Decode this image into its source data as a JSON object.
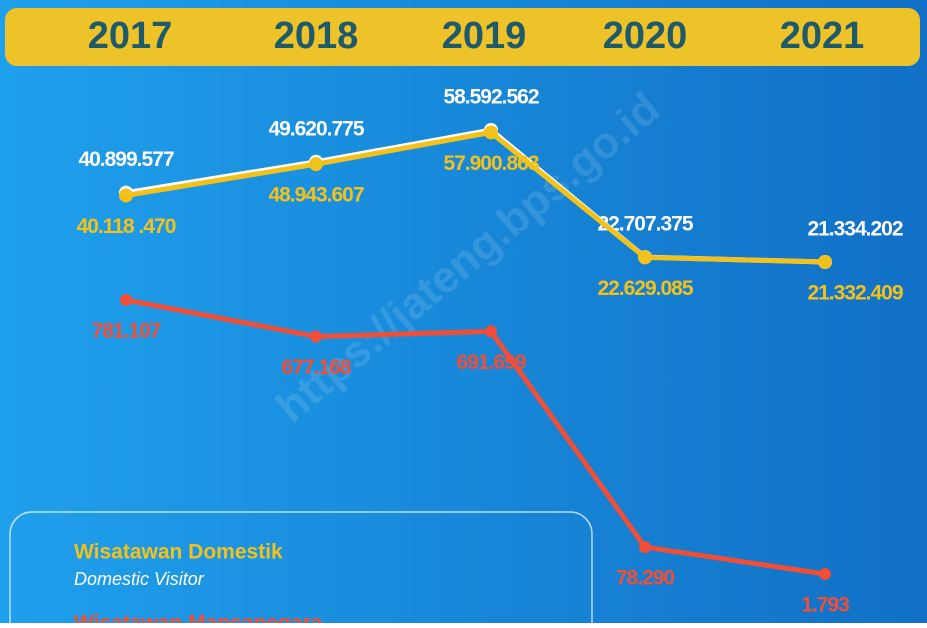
{
  "chart_data": {
    "type": "line",
    "categories": [
      "2017",
      "2018",
      "2019",
      "2020",
      "2021"
    ],
    "series": [
      {
        "color": "#ffffff",
        "values": [
          40899577,
          49620775,
          58592562,
          22707375,
          21334202
        ],
        "value_labels": [
          "40.899.577",
          "49.620.775",
          "58.592.562",
          "22.707.375",
          "21.334.202"
        ]
      },
      {
        "name": "Wisatawan Domestik",
        "subtitle": "Domestic Visitor",
        "color": "#f2c21b",
        "values": [
          40118470,
          48943607,
          57900863,
          22629085,
          21332409
        ],
        "value_labels": [
          "40.118 .470",
          "48.943.607",
          "57.900.863",
          "22.629.085",
          "21.332.409"
        ]
      },
      {
        "name": "Wisatawan Mancanegara",
        "color": "#f04e37",
        "axis": "y2",
        "values": [
          781107,
          677168,
          691699,
          78290,
          1793
        ],
        "value_labels": [
          "781.107",
          "677.168",
          "691.699",
          "78.290",
          "1.793"
        ]
      }
    ],
    "watermark": "https://jateng.bps.go.id"
  }
}
